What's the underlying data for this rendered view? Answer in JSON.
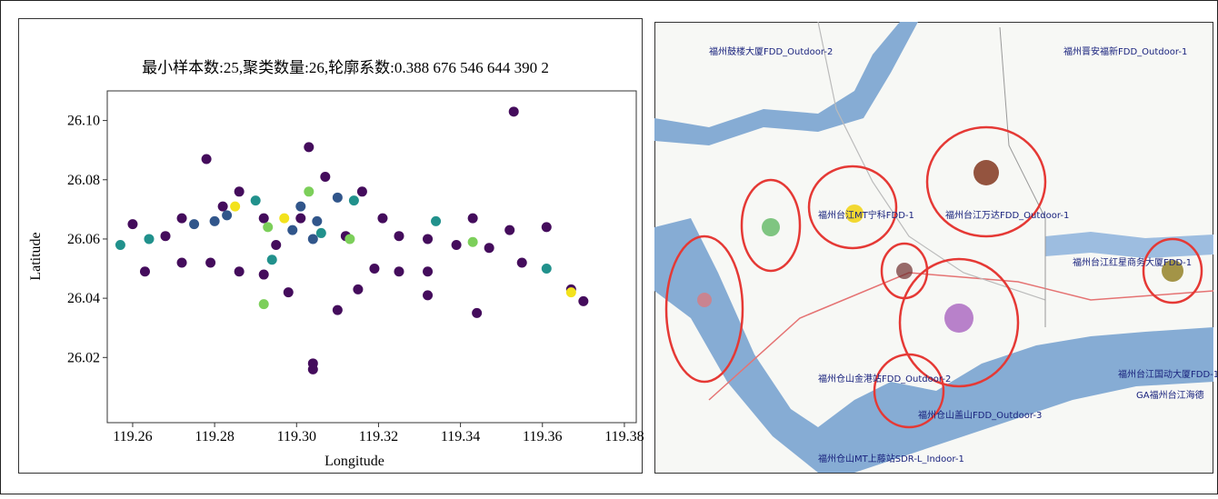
{
  "chart_data": {
    "type": "scatter",
    "title": "最小样本数:25,聚类数量:26,轮廓系数:0.388 676 546 644 390 2",
    "x_label": "Longitude",
    "y_label": "Latitude",
    "xlim": [
      119.2538,
      119.3829
    ],
    "ylim": [
      25.998,
      26.11
    ],
    "xticks": [
      {
        "value": 119.26,
        "label": "119.26"
      },
      {
        "value": 119.28,
        "label": "119.28"
      },
      {
        "value": 119.3,
        "label": "119.30"
      },
      {
        "value": 119.32,
        "label": "119.32"
      },
      {
        "value": 119.34,
        "label": "119.34"
      },
      {
        "value": 119.36,
        "label": "119.36"
      },
      {
        "value": 119.38,
        "label": "119.38"
      }
    ],
    "yticks": [
      {
        "value": 26.02,
        "label": "26.02"
      },
      {
        "value": 26.04,
        "label": "26.04"
      },
      {
        "value": 26.06,
        "label": "26.06"
      },
      {
        "value": 26.08,
        "label": "26.08"
      },
      {
        "value": 26.1,
        "label": "26.10"
      }
    ],
    "series": [
      {
        "color": "#440c5c",
        "x": [
          119.353,
          119.303,
          119.278,
          119.26,
          119.263,
          119.268,
          119.272,
          119.279,
          119.286,
          119.292,
          119.298,
          119.304,
          119.304,
          119.31,
          119.315,
          119.319,
          119.325,
          119.332,
          119.344,
          119.332,
          119.355,
          119.347,
          119.361,
          119.37,
          119.367,
          119.282,
          119.307,
          119.316,
          119.325,
          119.339,
          119.343,
          119.352,
          119.321,
          119.332,
          119.272,
          119.286,
          119.295,
          119.301,
          119.292,
          119.312
        ],
        "values": [
          26.103,
          26.091,
          26.087,
          26.065,
          26.049,
          26.061,
          26.052,
          26.052,
          26.049,
          26.048,
          26.042,
          26.018,
          26.016,
          26.036,
          26.043,
          26.05,
          26.049,
          26.049,
          26.035,
          26.041,
          26.052,
          26.057,
          26.064,
          26.039,
          26.043,
          26.071,
          26.081,
          26.076,
          26.061,
          26.058,
          26.067,
          26.063,
          26.067,
          26.06,
          26.067,
          26.076,
          26.058,
          26.067,
          26.067,
          26.061
        ]
      },
      {
        "color": "#31568b",
        "x": [
          119.275,
          119.28,
          119.301,
          119.305,
          119.31,
          119.299,
          119.283,
          119.304
        ],
        "values": [
          26.065,
          26.066,
          26.071,
          26.066,
          26.074,
          26.063,
          26.068,
          26.06
        ]
      },
      {
        "color": "#21918c",
        "x": [
          119.257,
          119.264,
          119.29,
          119.294,
          119.334,
          119.361,
          119.314,
          119.306
        ],
        "values": [
          26.058,
          26.06,
          26.073,
          26.053,
          26.066,
          26.05,
          26.073,
          26.062
        ]
      },
      {
        "color": "#7ccf5a",
        "x": [
          119.303,
          119.292,
          119.313,
          119.343,
          119.293
        ],
        "values": [
          26.076,
          26.038,
          26.06,
          26.059,
          26.064
        ]
      },
      {
        "color": "#f3e21c",
        "x": [
          119.285,
          119.367,
          119.297
        ],
        "values": [
          26.071,
          26.042,
          26.067
        ]
      }
    ]
  },
  "map": {
    "labels": [
      "福州鼓楼大厦FDD_Outdoor-2",
      "福州晋安福新FDD_Outdoor-1",
      "福州台江MT宁科FDD-1",
      "福州台江万达FDD_Outdoor-1",
      "福州台江红星商务大厦FDD-1",
      "福州仓山金港站FDD_Outdoor-2",
      "福州仓山盖山FDD_Outdoor-3",
      "福州台江国动大厦FDD-1",
      "GA福州台江海德",
      "福州仓山MT上藤站SDR-L_Indoor-1"
    ]
  }
}
